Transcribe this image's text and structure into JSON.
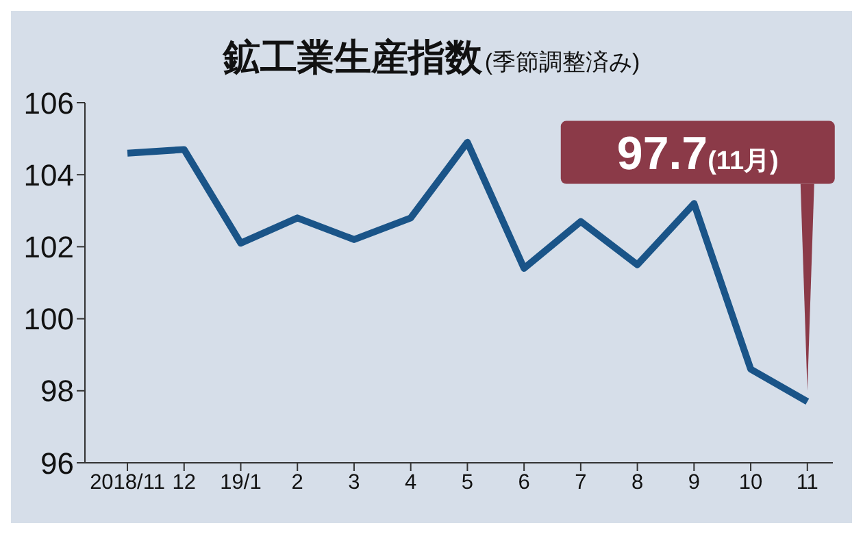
{
  "chart_data": {
    "type": "line",
    "title": "鉱工業生産指数",
    "subtitle": "(季節調整済み)",
    "categories": [
      "2018/11",
      "12",
      "19/1",
      "2",
      "3",
      "4",
      "5",
      "6",
      "7",
      "8",
      "9",
      "10",
      "11"
    ],
    "series": [
      {
        "color": "#1a5488",
        "values": [
          104.6,
          104.7,
          102.1,
          102.8,
          102.2,
          102.8,
          104.9,
          101.4,
          102.7,
          101.5,
          103.2,
          98.6,
          97.7
        ]
      }
    ],
    "ylim": [
      96,
      106
    ],
    "yticks": [
      96,
      98,
      100,
      102,
      104,
      106
    ],
    "grid": false,
    "legend": false,
    "marker": "none",
    "line_style": "solid",
    "annotations": [
      {
        "text": "97.7(11月)",
        "x": "11",
        "y": 97.7
      }
    ]
  }
}
